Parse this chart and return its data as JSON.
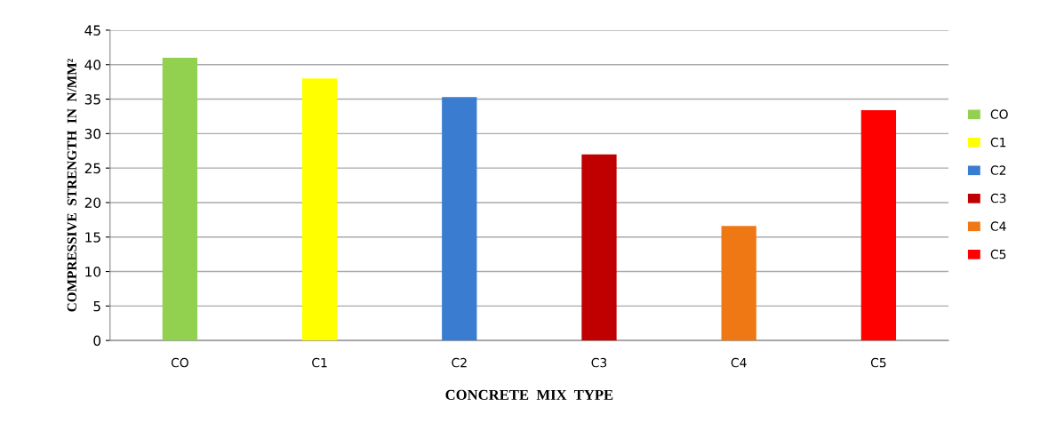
{
  "chart_data": {
    "type": "bar",
    "xlabel": "CONCRETE  MIX  TYPE",
    "ylabel": "COMPRESSIVE  STRENGTH  IN  N/MM²",
    "categories": [
      "CO",
      "C1",
      "C2",
      "C3",
      "C4",
      "C5"
    ],
    "series": [
      {
        "name": "CO",
        "color": "#92d050",
        "values": [
          41.0,
          null,
          null,
          null,
          null,
          null
        ]
      },
      {
        "name": "C1",
        "color": "#ffff00",
        "values": [
          null,
          38.0,
          null,
          null,
          null,
          null
        ]
      },
      {
        "name": "C2",
        "color": "#3a7dd0",
        "values": [
          null,
          null,
          35.3,
          null,
          null,
          null
        ]
      },
      {
        "name": "C3",
        "color": "#c00000",
        "values": [
          null,
          null,
          null,
          27.0,
          null,
          null
        ]
      },
      {
        "name": "C4",
        "color": "#f07814",
        "values": [
          null,
          null,
          null,
          null,
          16.6,
          null
        ]
      },
      {
        "name": "C5",
        "color": "#ff0000",
        "values": [
          null,
          null,
          null,
          null,
          null,
          33.4
        ]
      }
    ],
    "ylim": [
      0,
      45
    ],
    "yticks": [
      0,
      5,
      10,
      15,
      20,
      25,
      30,
      35,
      40,
      45
    ],
    "grid": "y",
    "legend": "right"
  }
}
